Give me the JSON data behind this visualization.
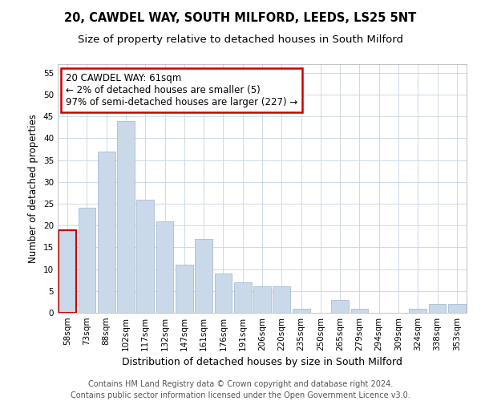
{
  "title1": "20, CAWDEL WAY, SOUTH MILFORD, LEEDS, LS25 5NT",
  "title2": "Size of property relative to detached houses in South Milford",
  "xlabel": "Distribution of detached houses by size in South Milford",
  "ylabel": "Number of detached properties",
  "categories": [
    "58sqm",
    "73sqm",
    "88sqm",
    "102sqm",
    "117sqm",
    "132sqm",
    "147sqm",
    "161sqm",
    "176sqm",
    "191sqm",
    "206sqm",
    "220sqm",
    "235sqm",
    "250sqm",
    "265sqm",
    "279sqm",
    "294sqm",
    "309sqm",
    "324sqm",
    "338sqm",
    "353sqm"
  ],
  "values": [
    19,
    24,
    37,
    44,
    26,
    21,
    11,
    17,
    9,
    7,
    6,
    6,
    1,
    0,
    3,
    1,
    0,
    0,
    1,
    2,
    2
  ],
  "bar_color": "#c9d9ea",
  "bar_edge_color": "#9ab4cc",
  "annotation_box_text": "20 CAWDEL WAY: 61sqm\n← 2% of detached houses are smaller (5)\n97% of semi-detached houses are larger (227) →",
  "annotation_box_facecolor": "#ffffff",
  "annotation_box_edgecolor": "#cc0000",
  "first_bar_left_edge_color": "#cc0000",
  "ylim": [
    0,
    57
  ],
  "yticks": [
    0,
    5,
    10,
    15,
    20,
    25,
    30,
    35,
    40,
    45,
    50,
    55
  ],
  "footer_line1": "Contains HM Land Registry data © Crown copyright and database right 2024.",
  "footer_line2": "Contains public sector information licensed under the Open Government Licence v3.0.",
  "bg_color": "#ffffff",
  "grid_color": "#c8d4e0",
  "title1_fontsize": 10.5,
  "title2_fontsize": 9.5,
  "xlabel_fontsize": 9,
  "ylabel_fontsize": 8.5,
  "tick_fontsize": 7.5,
  "annotation_fontsize": 8.5,
  "footer_fontsize": 7
}
